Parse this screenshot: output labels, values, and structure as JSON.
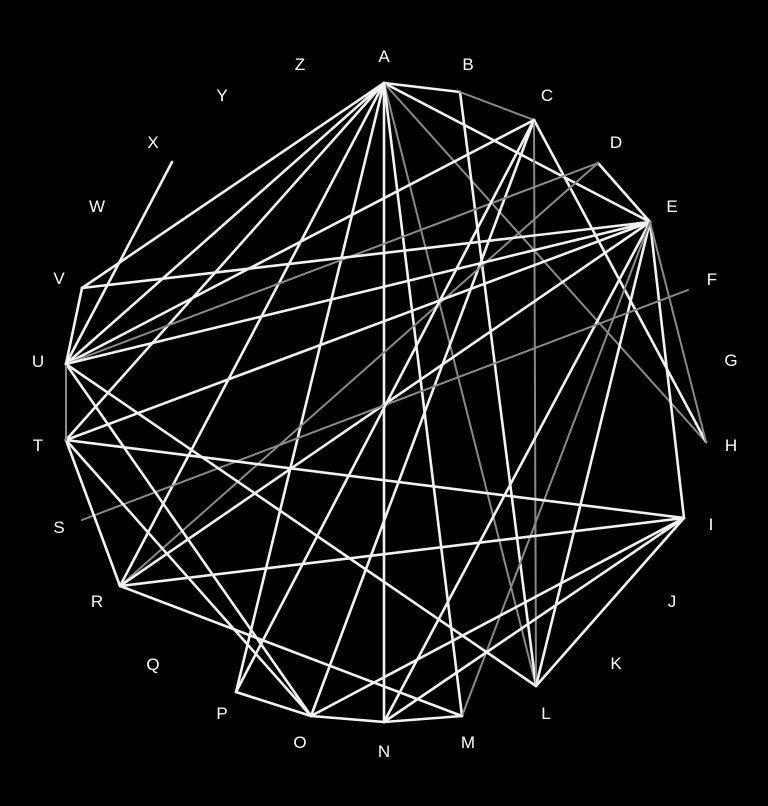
{
  "diagram": {
    "background": "#000000",
    "line_colors": {
      "strong": "#f2f2f2",
      "dim": "#8a8a8a"
    },
    "nodes": [
      "A",
      "B",
      "C",
      "D",
      "E",
      "F",
      "G",
      "H",
      "I",
      "J",
      "K",
      "L",
      "M",
      "N",
      "O",
      "P",
      "Q",
      "R",
      "S",
      "T",
      "U",
      "V",
      "W",
      "X",
      "Y",
      "Z"
    ],
    "edges": [
      {
        "from": "A",
        "to": "B",
        "strength": "strong"
      },
      {
        "from": "A",
        "to": "N",
        "strength": "strong"
      },
      {
        "from": "A",
        "to": "U",
        "strength": "strong"
      },
      {
        "from": "A",
        "to": "V",
        "strength": "strong"
      },
      {
        "from": "A",
        "to": "R",
        "strength": "strong"
      },
      {
        "from": "A",
        "to": "P",
        "strength": "strong"
      },
      {
        "from": "A",
        "to": "T",
        "strength": "strong"
      },
      {
        "from": "A",
        "to": "E",
        "strength": "strong"
      },
      {
        "from": "A",
        "to": "H",
        "strength": "dim"
      },
      {
        "from": "A",
        "to": "L",
        "strength": "dim"
      },
      {
        "from": "A",
        "to": "M",
        "strength": "strong"
      },
      {
        "from": "B",
        "to": "L",
        "strength": "strong"
      },
      {
        "from": "B",
        "to": "C",
        "strength": "dim"
      },
      {
        "from": "C",
        "to": "U",
        "strength": "strong"
      },
      {
        "from": "C",
        "to": "O",
        "strength": "strong"
      },
      {
        "from": "C",
        "to": "H",
        "strength": "strong"
      },
      {
        "from": "C",
        "to": "L",
        "strength": "dim"
      },
      {
        "from": "D",
        "to": "E",
        "strength": "strong"
      },
      {
        "from": "D",
        "to": "U",
        "strength": "dim"
      },
      {
        "from": "D",
        "to": "R",
        "strength": "dim"
      },
      {
        "from": "E",
        "to": "U",
        "strength": "strong"
      },
      {
        "from": "E",
        "to": "V",
        "strength": "strong"
      },
      {
        "from": "E",
        "to": "T",
        "strength": "strong"
      },
      {
        "from": "E",
        "to": "R",
        "strength": "strong"
      },
      {
        "from": "E",
        "to": "N",
        "strength": "strong"
      },
      {
        "from": "E",
        "to": "L",
        "strength": "strong"
      },
      {
        "from": "E",
        "to": "I",
        "strength": "strong"
      },
      {
        "from": "E",
        "to": "H",
        "strength": "dim"
      },
      {
        "from": "E",
        "to": "M",
        "strength": "dim"
      },
      {
        "from": "F",
        "to": "S",
        "strength": "dim"
      },
      {
        "from": "I",
        "to": "T",
        "strength": "strong"
      },
      {
        "from": "I",
        "to": "R",
        "strength": "strong"
      },
      {
        "from": "I",
        "to": "O",
        "strength": "strong"
      },
      {
        "from": "I",
        "to": "N",
        "strength": "strong"
      },
      {
        "from": "I",
        "to": "L",
        "strength": "strong"
      },
      {
        "from": "L",
        "to": "U",
        "strength": "strong"
      },
      {
        "from": "M",
        "to": "R",
        "strength": "strong"
      },
      {
        "from": "M",
        "to": "N",
        "strength": "strong"
      },
      {
        "from": "N",
        "to": "O",
        "strength": "strong"
      },
      {
        "from": "O",
        "to": "P",
        "strength": "strong"
      },
      {
        "from": "O",
        "to": "T",
        "strength": "strong"
      },
      {
        "from": "O",
        "to": "U",
        "strength": "strong"
      },
      {
        "from": "P",
        "to": "C",
        "strength": "strong"
      },
      {
        "from": "R",
        "to": "T",
        "strength": "strong"
      },
      {
        "from": "T",
        "to": "U",
        "strength": "dim"
      },
      {
        "from": "U",
        "to": "X",
        "strength": "strong"
      },
      {
        "from": "U",
        "to": "V",
        "strength": "strong"
      }
    ]
  }
}
